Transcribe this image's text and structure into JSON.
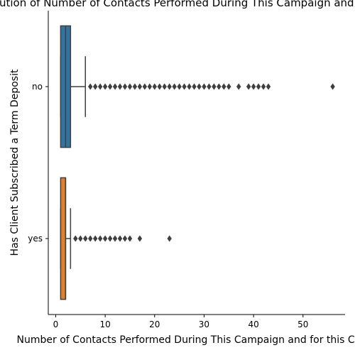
{
  "chart_data": {
    "type": "box",
    "orientation": "horizontal",
    "title": "Distribution of Number of Contacts Performed During This Campaign and for this Client",
    "xlabel": "Number of Contacts Performed During This Campaign and for this Client",
    "ylabel": "Has Client Subscribed a Term Deposit",
    "xlim": [
      -1.5,
      58.5
    ],
    "xticks": [
      0,
      10,
      20,
      30,
      40,
      50
    ],
    "categories": [
      "no",
      "yes"
    ],
    "series": [
      {
        "category": "no",
        "color": "#3274a1",
        "min": 1,
        "q1": 1,
        "median": 2,
        "q3": 3,
        "max": 6,
        "outliers": [
          7,
          8,
          9,
          10,
          11,
          12,
          13,
          14,
          15,
          16,
          17,
          18,
          19,
          20,
          21,
          22,
          23,
          24,
          25,
          26,
          27,
          28,
          29,
          30,
          31,
          32,
          33,
          34,
          35,
          37,
          39,
          40,
          41,
          42,
          43,
          56
        ]
      },
      {
        "category": "yes",
        "color": "#e1812c",
        "min": 1,
        "q1": 1,
        "median": 2,
        "q3": 2,
        "max": 3,
        "outliers": [
          4,
          5,
          6,
          7,
          8,
          9,
          10,
          11,
          12,
          13,
          14,
          15,
          17,
          23
        ]
      }
    ],
    "grid": false,
    "legend": "none"
  }
}
